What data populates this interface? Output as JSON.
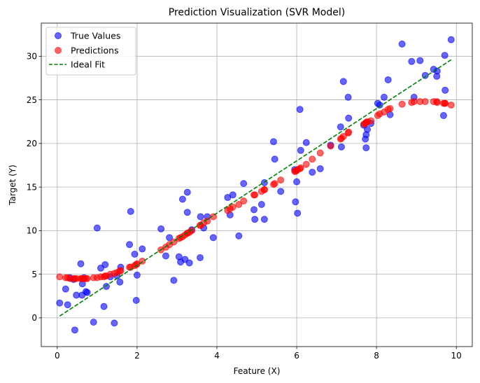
{
  "chart_data": {
    "type": "scatter",
    "title": "Prediction Visualization (SVR Model)",
    "xlabel": "Feature (X)",
    "ylabel": "Target (Y)",
    "xlim": [
      -0.4,
      10.4
    ],
    "ylim": [
      -3.3,
      33.8
    ],
    "xticks": [
      0,
      2,
      4,
      6,
      8,
      10
    ],
    "yticks": [
      0,
      5,
      10,
      15,
      20,
      25,
      30
    ],
    "grid": true,
    "legend_position": "top-left",
    "series": [
      {
        "name": "True Values",
        "kind": "scatter",
        "color": "#0000ff",
        "alpha": 0.6,
        "points": [
          [
            0.06,
            1.7
          ],
          [
            0.21,
            3.3
          ],
          [
            0.26,
            1.5
          ],
          [
            0.32,
            4.6
          ],
          [
            0.41,
            4.4
          ],
          [
            0.44,
            -1.4
          ],
          [
            0.48,
            2.6
          ],
          [
            0.59,
            6.2
          ],
          [
            0.62,
            2.6
          ],
          [
            0.63,
            3.9
          ],
          [
            0.67,
            4.6
          ],
          [
            0.72,
            3.0
          ],
          [
            0.75,
            2.9
          ],
          [
            0.91,
            -0.5
          ],
          [
            1.0,
            10.3
          ],
          [
            1.09,
            5.7
          ],
          [
            1.17,
            1.3
          ],
          [
            1.2,
            6.1
          ],
          [
            1.23,
            3.6
          ],
          [
            1.33,
            4.7
          ],
          [
            1.43,
            -0.6
          ],
          [
            1.5,
            4.8
          ],
          [
            1.57,
            4.1
          ],
          [
            1.59,
            5.8
          ],
          [
            1.81,
            8.4
          ],
          [
            1.84,
            12.2
          ],
          [
            1.94,
            7.3
          ],
          [
            1.98,
            2.0
          ],
          [
            2.0,
            4.9
          ],
          [
            2.13,
            7.9
          ],
          [
            2.6,
            10.2
          ],
          [
            2.72,
            7.1
          ],
          [
            2.81,
            9.2
          ],
          [
            2.92,
            4.3
          ],
          [
            3.05,
            7.0
          ],
          [
            3.09,
            6.4
          ],
          [
            3.14,
            13.6
          ],
          [
            3.2,
            6.7
          ],
          [
            3.26,
            14.4
          ],
          [
            3.26,
            12.1
          ],
          [
            3.31,
            6.3
          ],
          [
            3.37,
            10.1
          ],
          [
            3.58,
            6.9
          ],
          [
            3.59,
            11.6
          ],
          [
            3.67,
            10.3
          ],
          [
            3.76,
            11.6
          ],
          [
            3.91,
            9.2
          ],
          [
            4.27,
            13.8
          ],
          [
            4.33,
            11.8
          ],
          [
            4.4,
            14.1
          ],
          [
            4.55,
            9.4
          ],
          [
            4.67,
            15.4
          ],
          [
            4.93,
            12.4
          ],
          [
            4.95,
            11.3
          ],
          [
            5.12,
            13.0
          ],
          [
            5.19,
            11.3
          ],
          [
            5.19,
            15.5
          ],
          [
            5.42,
            20.2
          ],
          [
            5.45,
            18.2
          ],
          [
            5.6,
            14.5
          ],
          [
            5.95,
            17.0
          ],
          [
            5.97,
            13.3
          ],
          [
            6.0,
            15.6
          ],
          [
            6.02,
            12.0
          ],
          [
            6.08,
            23.9
          ],
          [
            6.1,
            19.2
          ],
          [
            6.24,
            20.1
          ],
          [
            6.39,
            16.7
          ],
          [
            6.59,
            17.1
          ],
          [
            6.85,
            19.8
          ],
          [
            7.1,
            21.9
          ],
          [
            7.12,
            19.6
          ],
          [
            7.17,
            27.1
          ],
          [
            7.29,
            25.3
          ],
          [
            7.3,
            22.9
          ],
          [
            7.68,
            22.1
          ],
          [
            7.72,
            20.5
          ],
          [
            7.74,
            21.0
          ],
          [
            7.74,
            19.5
          ],
          [
            7.77,
            21.6
          ],
          [
            7.86,
            22.3
          ],
          [
            8.03,
            24.6
          ],
          [
            8.08,
            24.4
          ],
          [
            8.19,
            25.3
          ],
          [
            8.29,
            27.3
          ],
          [
            8.34,
            23.3
          ],
          [
            8.64,
            31.4
          ],
          [
            8.88,
            29.4
          ],
          [
            8.94,
            25.3
          ],
          [
            9.09,
            29.5
          ],
          [
            9.22,
            27.8
          ],
          [
            9.43,
            28.5
          ],
          [
            9.51,
            27.7
          ],
          [
            9.52,
            28.3
          ],
          [
            9.68,
            23.2
          ],
          [
            9.71,
            30.1
          ],
          [
            9.72,
            26.1
          ],
          [
            9.87,
            31.9
          ]
        ]
      },
      {
        "name": "Predictions",
        "kind": "scatter",
        "color": "#ff0000",
        "alpha": 0.6,
        "points": [
          [
            0.06,
            4.7
          ],
          [
            0.21,
            4.6
          ],
          [
            0.26,
            4.6
          ],
          [
            0.32,
            4.5
          ],
          [
            0.41,
            4.5
          ],
          [
            0.44,
            4.5
          ],
          [
            0.48,
            4.5
          ],
          [
            0.59,
            4.5
          ],
          [
            0.62,
            4.5
          ],
          [
            0.63,
            4.5
          ],
          [
            0.67,
            4.5
          ],
          [
            0.72,
            4.5
          ],
          [
            0.75,
            4.5
          ],
          [
            0.91,
            4.6
          ],
          [
            1.0,
            4.6
          ],
          [
            1.09,
            4.7
          ],
          [
            1.17,
            4.7
          ],
          [
            1.2,
            4.8
          ],
          [
            1.23,
            4.8
          ],
          [
            1.33,
            5.0
          ],
          [
            1.43,
            5.1
          ],
          [
            1.5,
            5.2
          ],
          [
            1.57,
            5.4
          ],
          [
            1.59,
            5.4
          ],
          [
            1.81,
            5.8
          ],
          [
            1.84,
            5.8
          ],
          [
            1.94,
            6.0
          ],
          [
            1.98,
            6.1
          ],
          [
            2.0,
            6.2
          ],
          [
            2.13,
            6.5
          ],
          [
            2.6,
            7.8
          ],
          [
            2.72,
            8.1
          ],
          [
            2.81,
            8.4
          ],
          [
            2.92,
            8.7
          ],
          [
            3.05,
            9.1
          ],
          [
            3.09,
            9.2
          ],
          [
            3.14,
            9.3
          ],
          [
            3.2,
            9.5
          ],
          [
            3.26,
            9.7
          ],
          [
            3.26,
            9.7
          ],
          [
            3.31,
            9.8
          ],
          [
            3.37,
            10.0
          ],
          [
            3.58,
            10.6
          ],
          [
            3.59,
            10.6
          ],
          [
            3.67,
            10.9
          ],
          [
            3.76,
            11.1
          ],
          [
            3.91,
            11.6
          ],
          [
            4.27,
            12.3
          ],
          [
            4.33,
            12.5
          ],
          [
            4.4,
            12.7
          ],
          [
            4.55,
            13.0
          ],
          [
            4.67,
            13.4
          ],
          [
            4.93,
            14.1
          ],
          [
            4.95,
            14.1
          ],
          [
            5.12,
            14.5
          ],
          [
            5.19,
            14.7
          ],
          [
            5.19,
            14.7
          ],
          [
            5.42,
            15.3
          ],
          [
            5.45,
            15.4
          ],
          [
            5.6,
            15.8
          ],
          [
            5.95,
            16.8
          ],
          [
            5.97,
            16.8
          ],
          [
            6.0,
            16.9
          ],
          [
            6.02,
            17.0
          ],
          [
            6.08,
            17.1
          ],
          [
            6.1,
            17.2
          ],
          [
            6.24,
            17.6
          ],
          [
            6.39,
            18.2
          ],
          [
            6.59,
            18.9
          ],
          [
            6.85,
            19.7
          ],
          [
            7.1,
            20.5
          ],
          [
            7.12,
            20.6
          ],
          [
            7.17,
            20.8
          ],
          [
            7.29,
            21.2
          ],
          [
            7.3,
            21.3
          ],
          [
            7.68,
            22.2
          ],
          [
            7.72,
            22.3
          ],
          [
            7.74,
            22.4
          ],
          [
            7.74,
            22.4
          ],
          [
            7.77,
            22.5
          ],
          [
            7.86,
            22.6
          ],
          [
            8.03,
            23.2
          ],
          [
            8.08,
            23.4
          ],
          [
            8.19,
            23.6
          ],
          [
            8.29,
            23.9
          ],
          [
            8.34,
            24.0
          ],
          [
            8.64,
            24.5
          ],
          [
            8.88,
            24.7
          ],
          [
            8.94,
            24.8
          ],
          [
            9.09,
            24.8
          ],
          [
            9.22,
            24.8
          ],
          [
            9.43,
            24.8
          ],
          [
            9.51,
            24.8
          ],
          [
            9.52,
            24.7
          ],
          [
            9.68,
            24.6
          ],
          [
            9.71,
            24.6
          ],
          [
            9.72,
            24.6
          ],
          [
            9.87,
            24.4
          ]
        ]
      },
      {
        "name": "Ideal Fit",
        "kind": "line",
        "style": "dashed",
        "color": "#008000",
        "points": [
          [
            0.06,
            0.2
          ],
          [
            9.87,
            29.6
          ]
        ]
      }
    ]
  }
}
